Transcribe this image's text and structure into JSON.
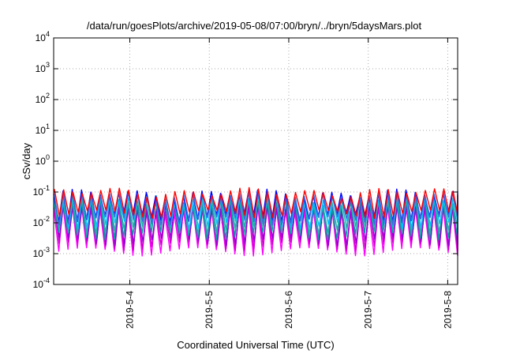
{
  "chart_data": {
    "type": "line",
    "title": "/data/run/goesPlots/archive/2019-05-08/07:00/bryn/../bryn/5daysMars.plot",
    "xlabel": "Coordinated Universal Time (UTC)",
    "ylabel": "cSv/day",
    "y_scale": "log",
    "ylim": [
      0.0001,
      10000
    ],
    "xlim": [
      "2019-05-03 01:00",
      "2019-05-08 03:00"
    ],
    "x_ticks": [
      "2019-5-4",
      "2019-5-5",
      "2019-5-6",
      "2019-5-7",
      "2019-5-8"
    ],
    "y_ticks": [
      {
        "base": "10",
        "exp": "-4",
        "value": 0.0001
      },
      {
        "base": "10",
        "exp": "-3",
        "value": 0.001
      },
      {
        "base": "10",
        "exp": "-2",
        "value": 0.01
      },
      {
        "base": "10",
        "exp": "-1",
        "value": 0.1
      },
      {
        "base": "10",
        "exp": "0",
        "value": 1
      },
      {
        "base": "10",
        "exp": "1",
        "value": 10
      },
      {
        "base": "10",
        "exp": "2",
        "value": 100
      },
      {
        "base": "10",
        "exp": "3",
        "value": 1000
      },
      {
        "base": "10",
        "exp": "4",
        "value": 10000
      }
    ],
    "grid": true,
    "sawtooth_period_hours": 2.8,
    "series": [
      {
        "color": "#ff00ff",
        "peak": 0.03,
        "trough": 0.0012
      },
      {
        "color": "#cc00cc",
        "peak": 0.035,
        "trough": 0.0018
      },
      {
        "color": "#9400d3",
        "peak": 0.04,
        "trough": 0.0025
      },
      {
        "color": "#00a0a0",
        "peak": 0.05,
        "trough": 0.004
      },
      {
        "color": "#20b2aa",
        "peak": 0.06,
        "trough": 0.006
      },
      {
        "color": "#00bfff",
        "peak": 0.07,
        "trough": 0.009
      },
      {
        "color": "#0000ff",
        "peak": 0.09,
        "trough": 0.015
      },
      {
        "color": "#4169e1",
        "peak": 0.08,
        "trough": 0.012
      },
      {
        "color": "#ff0000",
        "peak": 0.1,
        "trough": 0.02
      }
    ]
  }
}
